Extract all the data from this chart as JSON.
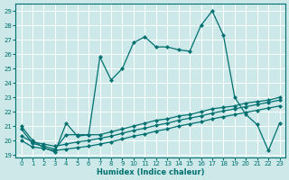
{
  "xlabel": "Humidex (Indice chaleur)",
  "bg_color": "#cce8e8",
  "grid_color": "#aacccc",
  "line_color": "#007070",
  "xlim": [
    -0.5,
    23.5
  ],
  "ylim": [
    18.8,
    29.5
  ],
  "xticks": [
    0,
    1,
    2,
    3,
    4,
    5,
    6,
    7,
    8,
    9,
    10,
    11,
    12,
    13,
    14,
    15,
    16,
    17,
    18,
    19,
    20,
    21,
    22,
    23
  ],
  "yticks": [
    19,
    20,
    21,
    22,
    23,
    24,
    25,
    26,
    27,
    28,
    29
  ],
  "line1_x": [
    0,
    1,
    2,
    3,
    4,
    5,
    6,
    7,
    8,
    9,
    10,
    11,
    12,
    13,
    14,
    15,
    16,
    17,
    18,
    19,
    20,
    21,
    22,
    23
  ],
  "line1_y": [
    21.0,
    20.0,
    19.5,
    19.2,
    21.2,
    20.3,
    20.4,
    25.8,
    24.2,
    25.0,
    26.8,
    27.2,
    26.5,
    26.5,
    26.3,
    26.2,
    28.0,
    29.0,
    27.3,
    23.0,
    21.8,
    21.1,
    19.3,
    21.2
  ],
  "line2_x": [
    0,
    1,
    2,
    3,
    4,
    5,
    6,
    7,
    8,
    9,
    10,
    11,
    12,
    13,
    14,
    15,
    16,
    17,
    18,
    19,
    20,
    21,
    22,
    23
  ],
  "line2_y": [
    20.8,
    19.8,
    19.6,
    19.4,
    20.4,
    20.4,
    20.4,
    20.4,
    20.6,
    20.8,
    21.0,
    21.2,
    21.4,
    21.5,
    21.7,
    21.8,
    22.0,
    22.2,
    22.3,
    22.4,
    22.6,
    22.7,
    22.8,
    23.0
  ],
  "line3_x": [
    0,
    1,
    2,
    3,
    4,
    5,
    6,
    7,
    8,
    9,
    10,
    11,
    12,
    13,
    14,
    15,
    16,
    17,
    18,
    19,
    20,
    21,
    22,
    23
  ],
  "line3_y": [
    20.3,
    19.9,
    19.75,
    19.6,
    19.75,
    19.9,
    20.0,
    20.15,
    20.3,
    20.5,
    20.7,
    20.85,
    21.05,
    21.2,
    21.4,
    21.55,
    21.7,
    21.9,
    22.05,
    22.2,
    22.35,
    22.5,
    22.65,
    22.8
  ],
  "line4_x": [
    0,
    1,
    2,
    3,
    4,
    5,
    6,
    7,
    8,
    9,
    10,
    11,
    12,
    13,
    14,
    15,
    16,
    17,
    18,
    19,
    20,
    21,
    22,
    23
  ],
  "line4_y": [
    20.0,
    19.55,
    19.45,
    19.3,
    19.4,
    19.5,
    19.6,
    19.75,
    19.9,
    20.1,
    20.3,
    20.45,
    20.65,
    20.8,
    21.0,
    21.15,
    21.3,
    21.5,
    21.65,
    21.8,
    21.95,
    22.1,
    22.25,
    22.4
  ]
}
